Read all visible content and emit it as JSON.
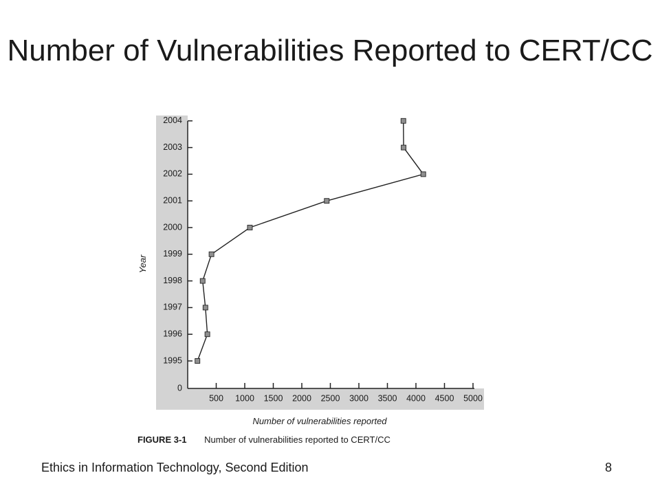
{
  "slide": {
    "title": "Number of Vulnerabilities Reported to CERT/CC",
    "footer_left": "Ethics in Information Technology, Second Edition",
    "page_number": "8"
  },
  "figure": {
    "number": "FIGURE 3-1",
    "caption": "Number of vulnerabilities reported to CERT/CC"
  },
  "chart_data": {
    "type": "line",
    "orientation": "horizontal",
    "xlabel": "Number of vulnerabilities reported",
    "ylabel": "Year",
    "xlim": [
      0,
      5000
    ],
    "x_ticks": [
      "500",
      "1000",
      "1500",
      "2000",
      "2500",
      "3000",
      "3500",
      "4000",
      "4500",
      "5000"
    ],
    "y_ticks": [
      "0",
      "1995",
      "1996",
      "1997",
      "1998",
      "1999",
      "2000",
      "2001",
      "2002",
      "2003",
      "2004"
    ],
    "series": [
      {
        "points": [
          {
            "year": "1995",
            "value": 171
          },
          {
            "year": "1996",
            "value": 345
          },
          {
            "year": "1997",
            "value": 311
          },
          {
            "year": "1998",
            "value": 262
          },
          {
            "year": "1999",
            "value": 417
          },
          {
            "year": "2000",
            "value": 1090
          },
          {
            "year": "2001",
            "value": 2437
          },
          {
            "year": "2002",
            "value": 4129
          },
          {
            "year": "2003",
            "value": 3784
          },
          {
            "year": "2004",
            "value": 3780
          }
        ]
      }
    ],
    "colors": {
      "panel": "#d3d3d3",
      "marker": "#8f8f8f",
      "line": "#222222"
    }
  }
}
